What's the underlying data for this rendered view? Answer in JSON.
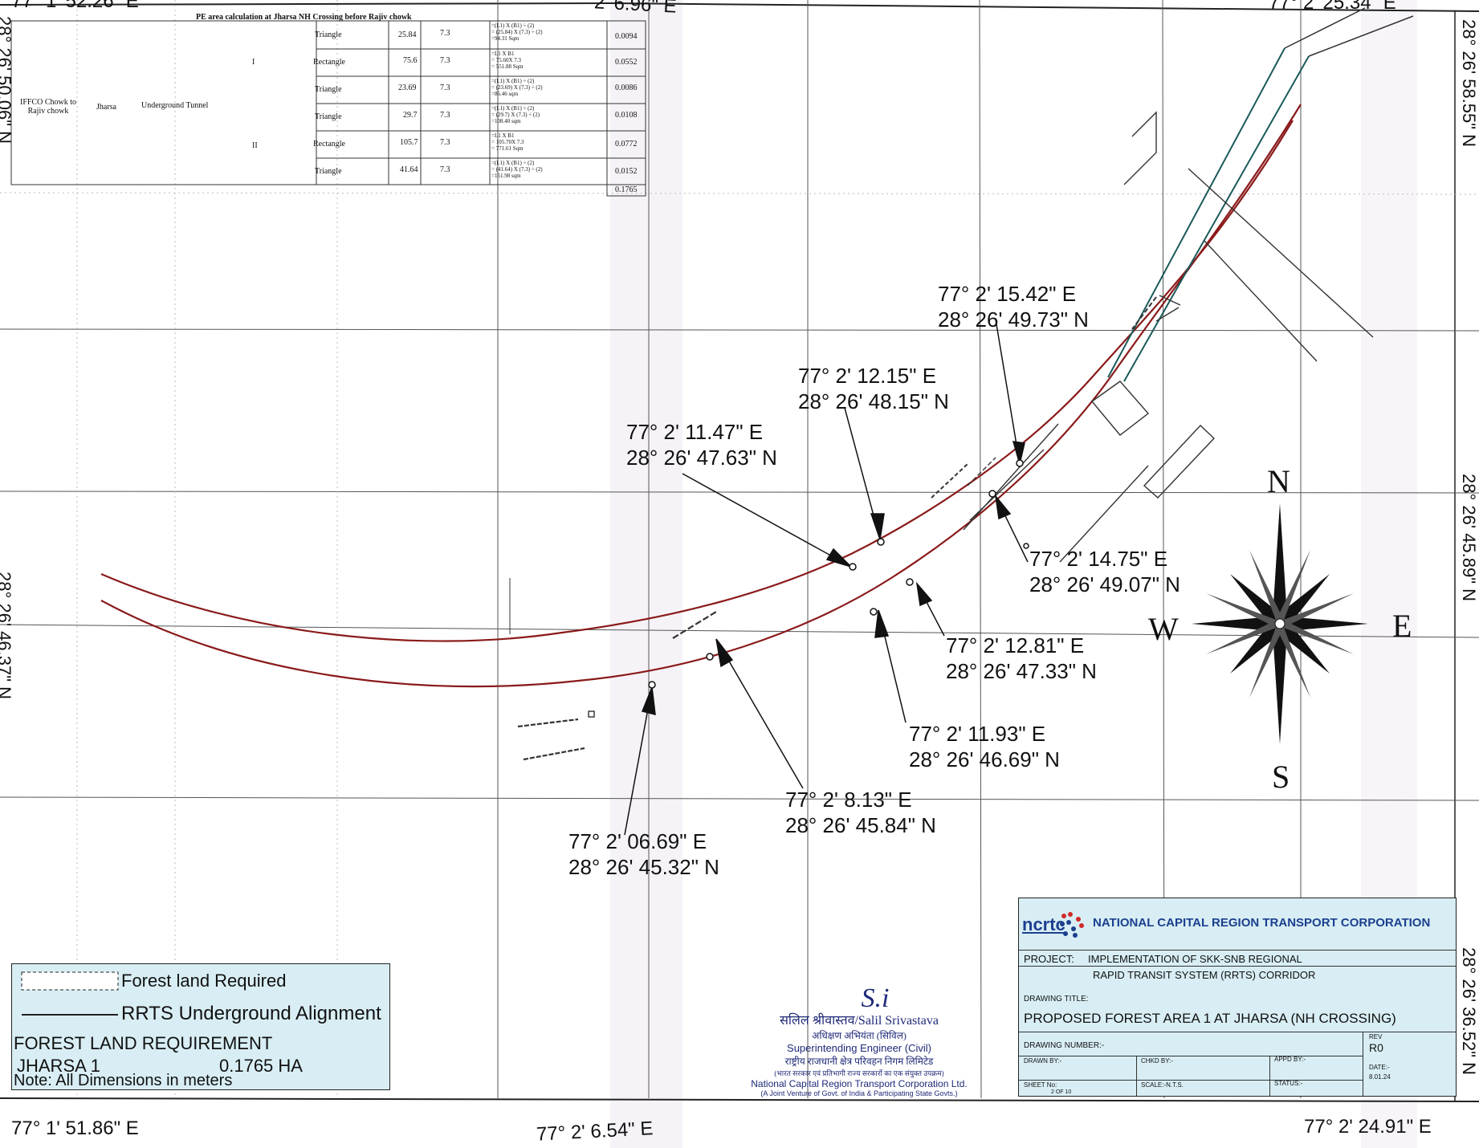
{
  "corners": {
    "top_left": "77° 1' 52.26\" E",
    "top_mid": "2' 6.96\" E",
    "top_right": "77° 2' 25.34\" E",
    "bottom_left": "77° 1' 51.86\" E",
    "bottom_mid": "77° 2' 6.54\" E",
    "bottom_right": "77° 2' 24.91\" E"
  },
  "right_edge": [
    "28° 26' 58.55\" N",
    "28° 26' 45.89\" N",
    "28° 26' 36.52\" N"
  ],
  "left_edge": [
    "28° 26' 50.06\" N",
    "28° 26' 46.37\" N"
  ],
  "points": [
    {
      "e": "77° 2' 15.42\" E",
      "n": "28° 26' 49.73\" N"
    },
    {
      "e": "77° 2' 12.15\" E",
      "n": "28° 26' 48.15\" N"
    },
    {
      "e": "77° 2' 11.47\" E",
      "n": "28° 26' 47.63\" N"
    },
    {
      "e": "77° 2' 14.75\" E",
      "n": "28° 26' 49.07\" N"
    },
    {
      "e": "77° 2' 12.81\" E",
      "n": "28° 26' 47.33\" N"
    },
    {
      "e": "77° 2' 11.93\" E",
      "n": "28° 26' 46.69\" N"
    },
    {
      "e": "77° 2' 8.13\" E",
      "n": "28° 26' 45.84\" N"
    },
    {
      "e": "77° 2' 06.69\" E",
      "n": "28° 26' 45.32\" N"
    }
  ],
  "compass": {
    "n": "N",
    "s": "S",
    "e": "E",
    "w": "W"
  },
  "pe_table": {
    "title": "PE area calculation at Jharsa NH Crossing before Rajiv chowk",
    "location": "IFFCO Chowk to Rajiv chowk",
    "village": "Jharsa",
    "structure": "Underground Tunnel",
    "total": "0.1765",
    "rows": [
      {
        "part": "",
        "shape": "Triangle",
        "len": "25.84",
        "wid": "7.3",
        "calc": "=(L1) X (B1) ÷ (2)\n= (25.84) X (7.3) ÷ (2)\n=94.31 Sqm",
        "area": "0.0094"
      },
      {
        "part": "I",
        "shape": "Rectangle",
        "len": "75.6",
        "wid": "7.3",
        "calc": "=L1 X B1\n= 75.60X 7.3\n= 551.88 Sqm",
        "area": "0.0552"
      },
      {
        "part": "",
        "shape": "Triangle",
        "len": "23.69",
        "wid": "7.3",
        "calc": "=(L1) X (B1) ÷ (2)\n= (23.69) X (7.3) ÷ (2)\n=86.46 sqm",
        "area": "0.0086"
      },
      {
        "part": "",
        "shape": "Triangle",
        "len": "29.7",
        "wid": "7.3",
        "calc": "=(L1) X (B1) ÷ (2)\n= (29.7) X (7.3) ÷ (2)\n=108.40 sqm",
        "area": "0.0108"
      },
      {
        "part": "II",
        "shape": "Rectangle",
        "len": "105.7",
        "wid": "7.3",
        "calc": "=L1 X B1\n= 105.70X 7.3\n= 771.61 Sqm",
        "area": "0.0772"
      },
      {
        "part": "",
        "shape": "Triangle",
        "len": "41.64",
        "wid": "7.3",
        "calc": "=(L1) X (B1) ÷ (2)\n= (41.64) X (7.3) ÷ (2)\n=151.98 sqm",
        "area": "0.0152"
      }
    ]
  },
  "legend": {
    "forest": "Forest land Required",
    "alignment": "RRTS Underground Alignment",
    "heading": "FOREST LAND REQUIREMENT",
    "site": "JHARSA 1",
    "area": "0.1765 HA",
    "note": "Note: All Dimensions in meters"
  },
  "stamp": {
    "signature": "S.i",
    "name": "सलिल श्रीवास्तव/Salil Srivastava",
    "title_hi": "अधिक्षण अभियंता (सिविल)",
    "title_en": "Superintending Engineer (Civil)",
    "org_hi": "राष्ट्रीय राजधानी क्षेत्र परिवहन निगम लिमिटेड",
    "sub_hi": "(भारत सरकार एवं प्रतिभागी राज्य सरकारों का एक संयुक्त उपक्रम)",
    "org_en": "National Capital Region Transport Corporation Ltd.",
    "jv": "(A Joint Venture of Govt. of India & Participating State Govts.)"
  },
  "title_block": {
    "logo": "ncrtc",
    "org": "NATIONAL CAPITAL REGION TRANSPORT CORPORATION",
    "project_label": "PROJECT:",
    "project_line1": "IMPLEMENTATION OF SKK-SNB REGIONAL",
    "project_line2": "RAPID TRANSIT SYSTEM (RRTS) CORRIDOR",
    "drawing_title_label": "DRAWING TITLE:",
    "drawing_title": "PROPOSED FOREST AREA 1 AT JHARSA (NH CROSSING)",
    "rev_label": "REV",
    "rev": "R0",
    "drawing_number": "DRAWING NUMBER:-",
    "drawn_by": "DRAWN BY:-",
    "chkd_by": "CHKD BY:-",
    "appd_by": "APPD BY:-",
    "date_label": "DATE:-",
    "date": "8.01.24",
    "sheet_label": "SHEET No:",
    "sheet": "2 OF 10",
    "scale": "SCALE:-N.T.S.",
    "status": "STATUS:-"
  },
  "colors": {
    "alignment_red": "#8a1a1a",
    "leader_black": "#111111",
    "panel_blue": "#d8eef4",
    "logo_blue": "#1c3f8f",
    "logo_red": "#d12a2a"
  }
}
